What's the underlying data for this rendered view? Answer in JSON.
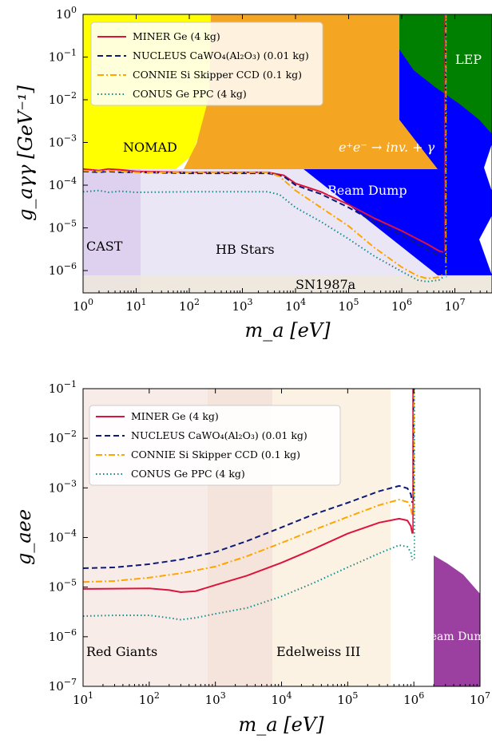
{
  "chart_data": [
    {
      "type": "line",
      "xlabel": "m_a [eV]",
      "ylabel": "g_aγγ [GeV⁻¹]",
      "log_x": true,
      "log_y": true,
      "xlim": [
        1,
        50000000
      ],
      "ylim": [
        3e-07,
        1
      ],
      "x_ticks": [
        1,
        10,
        100,
        1000,
        10000,
        100000,
        1000000,
        10000000
      ],
      "x_tick_labels": [
        "10^0",
        "10^1",
        "10^2",
        "10^3",
        "10^4",
        "10^5",
        "10^6",
        "10^7"
      ],
      "y_ticks": [
        1e-06,
        1e-05,
        0.0001,
        0.001,
        0.01,
        0.1,
        1
      ],
      "y_tick_labels": [
        "10^-6",
        "10^-5",
        "10^-4",
        "10^-3",
        "10^-2",
        "10^-1",
        "10^0"
      ],
      "legend_position": "top-left",
      "regions": [
        {
          "name": "NOMAD",
          "color": "#ffff00"
        },
        {
          "name": "e⁺e⁻ → inv. + γ",
          "color": "#f4a623"
        },
        {
          "name": "Beam Dump",
          "color": "#0000ff"
        },
        {
          "name": "LEP",
          "color": "#008000"
        },
        {
          "name": "CAST",
          "color": "#d8c8ec"
        },
        {
          "name": "HB Stars",
          "color": "#e8e2f4"
        },
        {
          "name": "SN1987a",
          "color": "#ece6dc"
        }
      ],
      "series": [
        {
          "name": "MINER Ge (4 kg)",
          "color": "#dc143c",
          "style": "solid",
          "x": [
            1,
            2,
            3,
            5,
            10,
            100,
            1000,
            3000,
            6000,
            10000,
            30000,
            100000,
            300000,
            1000000,
            3000000,
            5000000,
            6000000
          ],
          "y": [
            0.00024,
            0.00022,
            0.00024,
            0.00023,
            0.00021,
            0.0002,
            0.0002,
            0.0002,
            0.00017,
            0.00011,
            7e-05,
            3.5e-05,
            1.7e-05,
            8.5e-06,
            4.2e-06,
            2.9e-06,
            2.7e-06
          ]
        },
        {
          "name": "NUCLEUS CaWO₄(Al₂O₃) (0.01 kg)",
          "color": "#0c1a78",
          "style": "dashed",
          "x": [
            1,
            2,
            3,
            5,
            10,
            100,
            1000,
            3000,
            6000,
            10000,
            30000,
            100000,
            300000,
            1000000,
            3000000,
            5000000,
            6000000
          ],
          "y": [
            0.00021,
            0.0002,
            0.00021,
            0.0002,
            0.0002,
            0.00019,
            0.00019,
            0.00019,
            0.00016,
            0.0001,
            6.2e-05,
            3e-05,
            1.4e-05,
            6.8e-06,
            3.1e-06,
            2.2e-06,
            2.1e-06
          ]
        },
        {
          "name": "CONNIE Si Skipper CCD (0.1 kg)",
          "color": "#ffa500",
          "style": "dashdot",
          "x": [
            1,
            2,
            3,
            5,
            10,
            100,
            1000,
            3000,
            5000,
            10000,
            30000,
            100000,
            300000,
            1000000,
            2000000,
            3000000,
            5000000,
            6000000
          ],
          "y": [
            0.00022,
            0.00021,
            0.00022,
            0.00021,
            0.0002,
            0.0002,
            0.0002,
            0.0002,
            0.00016,
            7.5e-05,
            3e-05,
            1.1e-05,
            3.5e-06,
            1.2e-06,
            7.5e-07,
            6.5e-07,
            7e-07,
            8e-07
          ]
        },
        {
          "name": "CONUS Ge PPC (4 kg)",
          "color": "#148c8c",
          "style": "dotted",
          "x": [
            1,
            2,
            3,
            5,
            10,
            100,
            1000,
            3000,
            5000,
            10000,
            30000,
            100000,
            300000,
            1000000,
            2000000,
            3000000,
            5000000,
            6000000
          ],
          "y": [
            7e-05,
            7.5e-05,
            6.8e-05,
            7.2e-05,
            6.8e-05,
            7e-05,
            7e-05,
            7e-05,
            6e-05,
            3e-05,
            1.4e-05,
            5.5e-06,
            2.2e-06,
            9.5e-07,
            6e-07,
            5.5e-07,
            6e-07,
            7e-07
          ]
        }
      ]
    },
    {
      "type": "line",
      "xlabel": "m_a [eV]",
      "ylabel": "g_aee",
      "log_x": true,
      "log_y": true,
      "xlim": [
        10,
        10000000
      ],
      "ylim": [
        1e-07,
        0.1
      ],
      "x_ticks": [
        10,
        100,
        1000,
        10000,
        100000,
        1000000,
        10000000
      ],
      "x_tick_labels": [
        "10^1",
        "10^2",
        "10^3",
        "10^4",
        "10^5",
        "10^6",
        "10^7"
      ],
      "y_ticks": [
        1e-07,
        1e-06,
        1e-05,
        0.0001,
        0.001,
        0.01,
        0.1
      ],
      "y_tick_labels": [
        "10^-7",
        "10^-6",
        "10^-5",
        "10^-4",
        "10^-3",
        "10^-2",
        "10^-1"
      ],
      "legend_position": "top-left",
      "regions": [
        {
          "name": "Red Giants",
          "color": "#f6e6e2"
        },
        {
          "name": "Edelweiss III",
          "color": "#fbf2e4"
        },
        {
          "name": "Beam Dump",
          "color": "#9b3fa0"
        }
      ],
      "series": [
        {
          "name": "MINER Ge (4 kg)",
          "color": "#dc143c",
          "style": "solid",
          "x": [
            10,
            30,
            100,
            200,
            300,
            500,
            1000,
            3000,
            10000,
            30000,
            100000,
            300000,
            600000,
            800000,
            900000,
            950000
          ],
          "y": [
            9.2e-06,
            9.3e-06,
            9.4e-06,
            8.7e-06,
            7.9e-06,
            8.3e-06,
            1.1e-05,
            1.7e-05,
            3.1e-05,
            5.8e-05,
            0.00012,
            0.0002,
            0.00024,
            0.00022,
            0.00017,
            0.00012
          ]
        },
        {
          "name": "NUCLEUS CaWO₄(Al₂O₃) (0.01 kg)",
          "color": "#0c1a78",
          "style": "dashed",
          "x": [
            10,
            30,
            100,
            300,
            1000,
            3000,
            10000,
            30000,
            100000,
            300000,
            600000,
            800000,
            900000,
            950000
          ],
          "y": [
            2.4e-05,
            2.5e-05,
            2.9e-05,
            3.6e-05,
            5.1e-05,
            8.5e-05,
            0.00016,
            0.00029,
            0.0005,
            0.00086,
            0.0011,
            0.00098,
            0.00075,
            0.0005
          ]
        },
        {
          "name": "CONNIE Si Skipper CCD (0.1 kg)",
          "color": "#ffa500",
          "style": "dashdot",
          "x": [
            10,
            30,
            100,
            300,
            1000,
            3000,
            10000,
            30000,
            100000,
            300000,
            600000,
            800000,
            900000,
            950000
          ],
          "y": [
            1.27e-05,
            1.33e-05,
            1.55e-05,
            1.9e-05,
            2.6e-05,
            4.2e-05,
            7.8e-05,
            0.00014,
            0.00026,
            0.00045,
            0.00058,
            0.00052,
            0.0004,
            0.00027
          ]
        },
        {
          "name": "CONUS Ge PPC (4 kg)",
          "color": "#148c8c",
          "style": "dotted",
          "x": [
            10,
            30,
            100,
            200,
            300,
            500,
            1000,
            3000,
            10000,
            30000,
            100000,
            300000,
            600000,
            800000,
            900000,
            950000
          ],
          "y": [
            2.6e-06,
            2.7e-06,
            2.7e-06,
            2.4e-06,
            2.2e-06,
            2.4e-06,
            2.9e-06,
            3.8e-06,
            6.5e-06,
            1.2e-05,
            2.5e-05,
            4.8e-05,
            7e-05,
            6.5e-05,
            5e-05,
            3.5e-05
          ]
        }
      ]
    }
  ]
}
